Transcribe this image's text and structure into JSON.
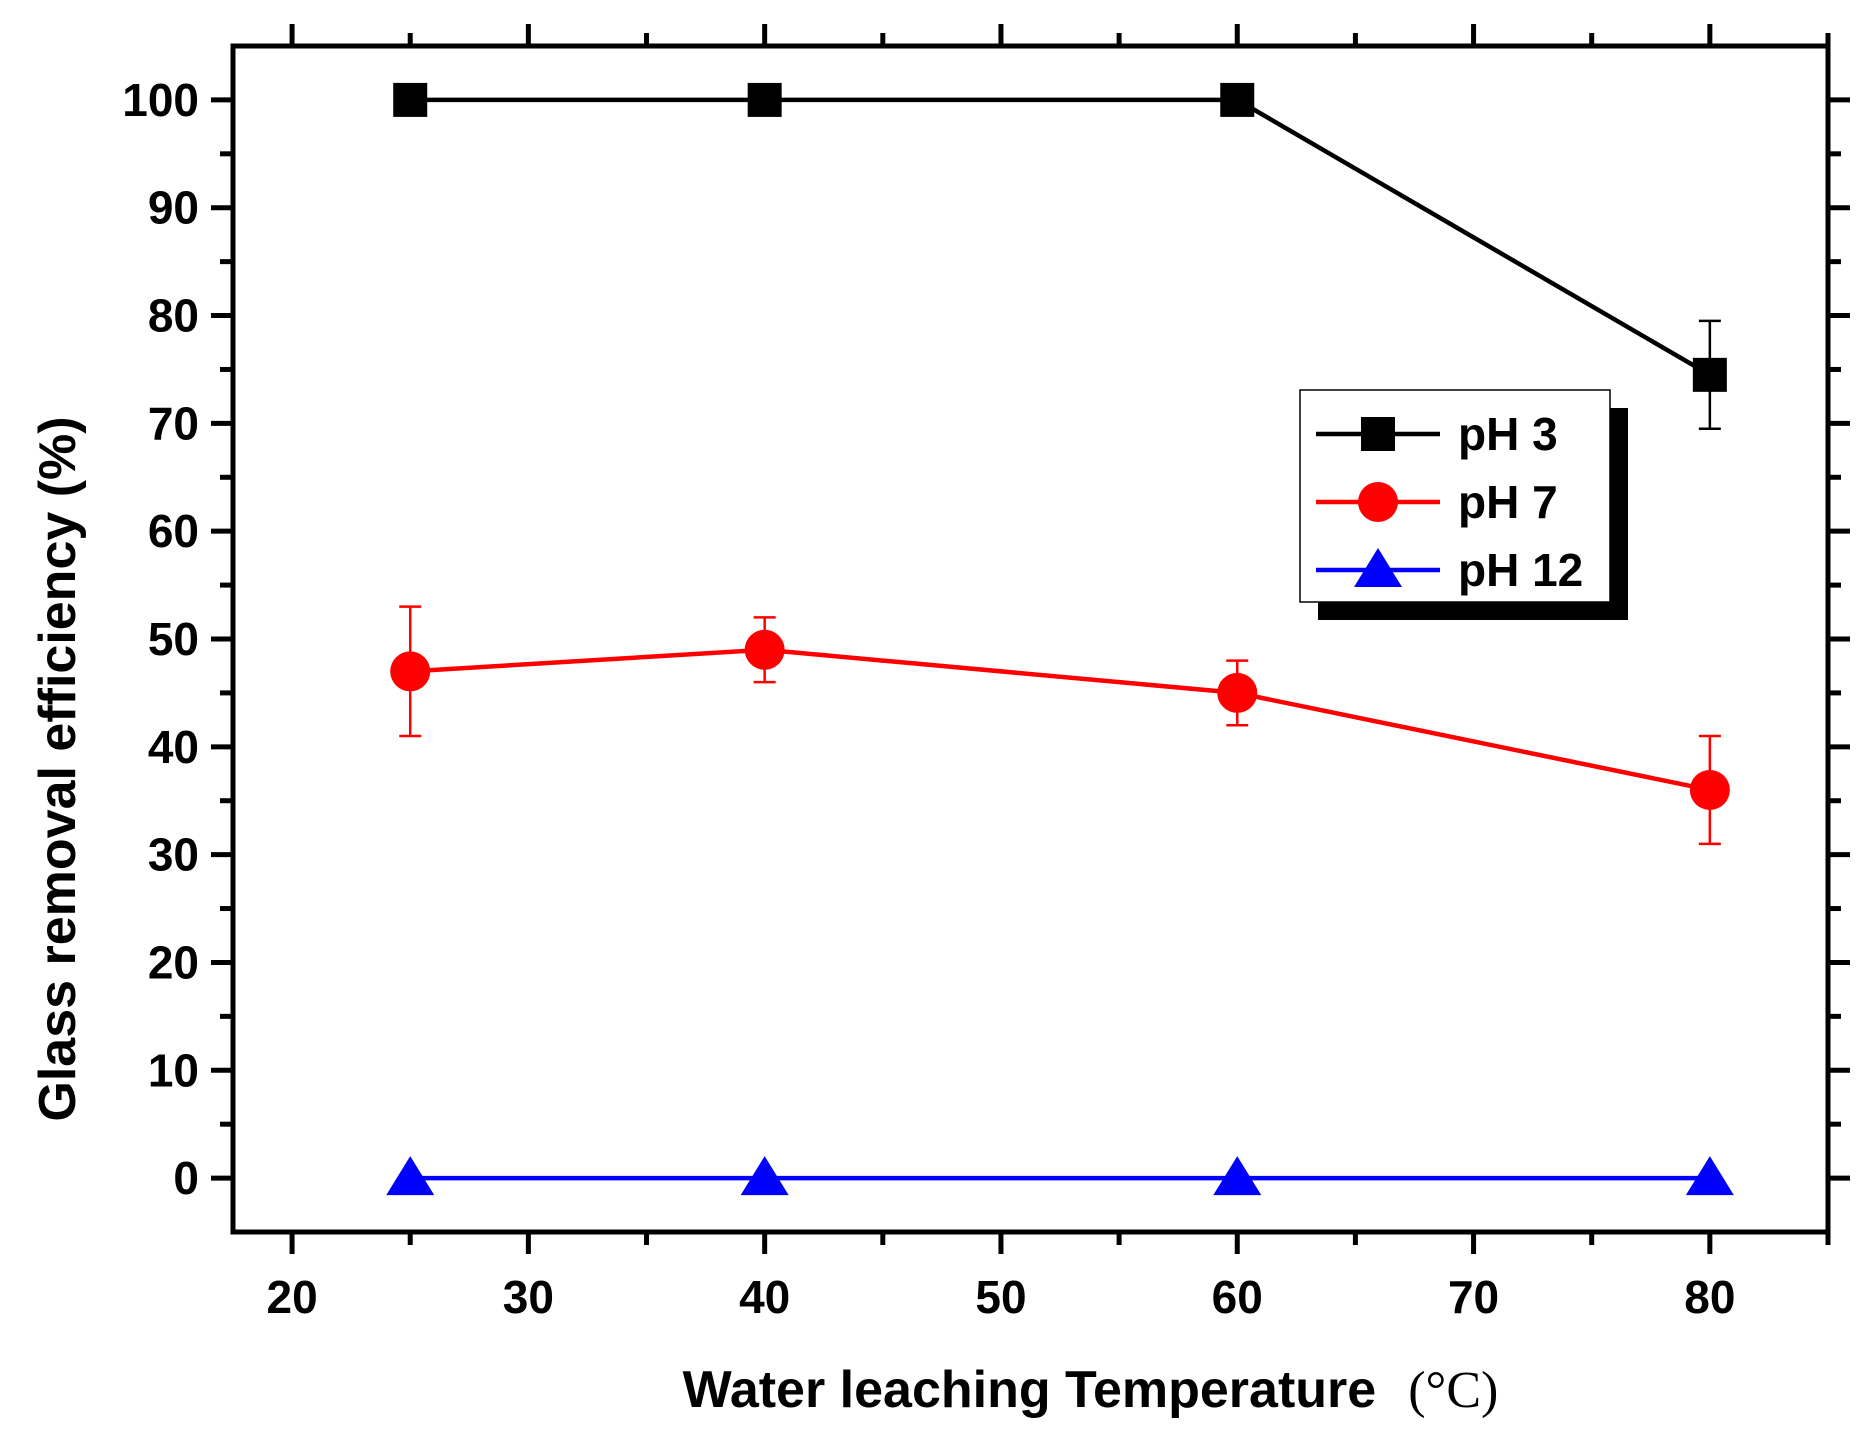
{
  "chart_data": {
    "type": "line",
    "title": "",
    "xlabel": "Water leaching Temperature",
    "xlabel_unit": "(°C)",
    "ylabel": "Glass removal efficiency (%)",
    "xlim": [
      17.5,
      85
    ],
    "ylim": [
      -5,
      105
    ],
    "x_ticks": [
      20,
      30,
      40,
      50,
      60,
      70,
      80
    ],
    "y_ticks": [
      0,
      10,
      20,
      30,
      40,
      50,
      60,
      70,
      80,
      90,
      100
    ],
    "x": [
      25,
      40,
      60,
      80
    ],
    "legend_position": "center-right",
    "series": [
      {
        "name": "pH 3",
        "marker": "square",
        "color": "#000000",
        "values": [
          100,
          100,
          100,
          74.5
        ],
        "errors": [
          0,
          0,
          0,
          5
        ]
      },
      {
        "name": "pH 7",
        "marker": "circle",
        "color": "#ff0000",
        "values": [
          47,
          49,
          45,
          36
        ],
        "errors": [
          6,
          3,
          3,
          5
        ]
      },
      {
        "name": "pH 12",
        "marker": "triangle",
        "color": "#0000ff",
        "values": [
          0,
          0,
          0,
          0
        ],
        "errors": [
          0,
          0,
          0,
          0
        ]
      }
    ]
  }
}
